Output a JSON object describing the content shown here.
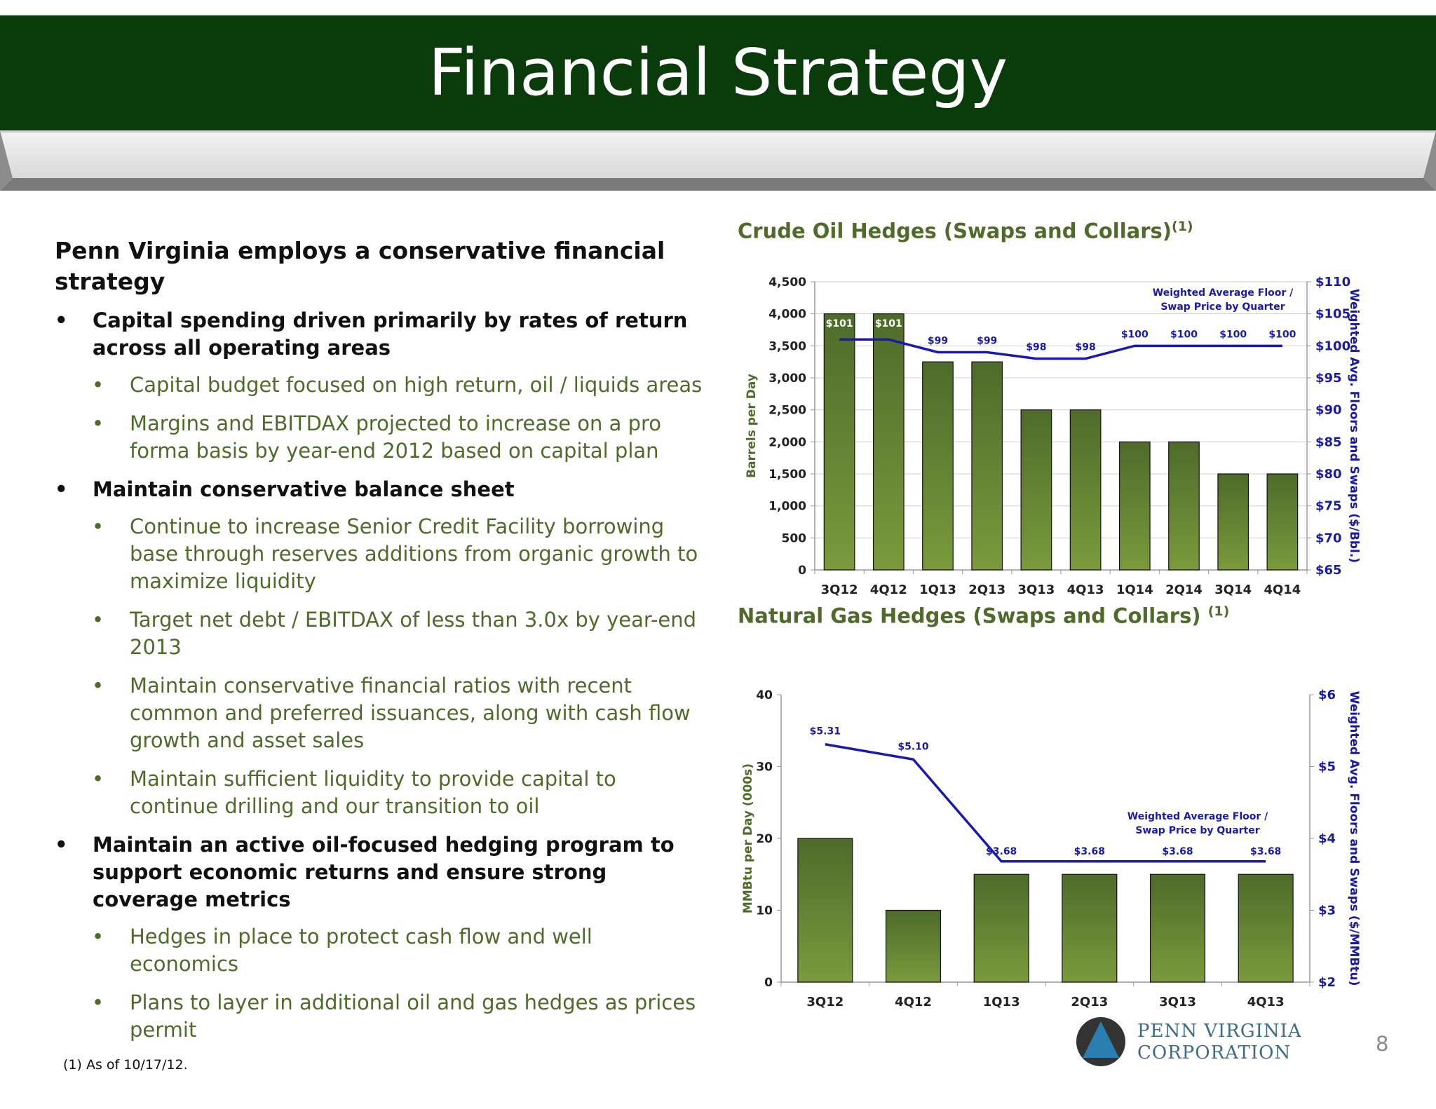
{
  "slide": {
    "title": "Financial Strategy",
    "page_number": "8",
    "footnote": "(1) As of 10/17/12.",
    "logo": {
      "line1": "PENN VIRGINIA",
      "line2": "CORPORATION"
    }
  },
  "left": {
    "intro": "Penn Virginia employs a conservative financial strategy",
    "sections": [
      {
        "text": "Capital spending driven primarily by rates of return across all operating areas",
        "items": [
          "Capital budget focused on high return, oil / liquids areas",
          "Margins and EBITDAX projected to increase on a pro forma basis by year-end 2012 based on capital plan"
        ]
      },
      {
        "text": "Maintain conservative balance sheet",
        "items": [
          "Continue to increase Senior Credit Facility borrowing base through reserves additions from organic growth to maximize liquidity",
          "Target net debt / EBITDAX of less than 3.0x by year-end 2013",
          "Maintain conservative financial ratios with recent common and preferred issuances, along with cash flow growth and asset sales",
          "Maintain sufficient liquidity to provide capital to continue drilling and our transition to oil"
        ]
      },
      {
        "text": "Maintain an active oil-focused hedging program to support economic returns and ensure strong coverage metrics",
        "items": [
          "Hedges in place to protect cash flow and well economics",
          "Plans to layer in additional oil and gas hedges as prices permit"
        ]
      }
    ]
  },
  "colors": {
    "title_bar": "#0a3b0a",
    "bar_top": "#4e6b2a",
    "bar_bottom": "#7a9a3c",
    "line": "#1a1ab0",
    "green_text": "#4e6b2a"
  },
  "chart_data": [
    {
      "type": "bar",
      "title": "Crude Oil Hedges (Swaps and Collars)",
      "title_sup": "(1)",
      "categories": [
        "3Q12",
        "4Q12",
        "1Q13",
        "2Q13",
        "3Q13",
        "4Q13",
        "1Q14",
        "2Q14",
        "3Q14",
        "4Q14"
      ],
      "values": [
        4000,
        4000,
        3250,
        3250,
        2500,
        2500,
        2000,
        2000,
        1500,
        1500
      ],
      "ylabel": "Barrels per Day",
      "ylim": [
        0,
        4500
      ],
      "yticks": [
        0,
        500,
        1000,
        1500,
        2000,
        2500,
        3000,
        3500,
        4000,
        4500
      ],
      "ytick_labels": [
        "0",
        "500",
        "1,000",
        "1,500",
        "2,000",
        "2,500",
        "3,000",
        "3,500",
        "4,000",
        "4,500"
      ],
      "y2label": "Weighted Avg. Floors and Swaps  ($/Bbl.)",
      "y2lim": [
        65,
        110
      ],
      "y2ticks": [
        65,
        70,
        75,
        80,
        85,
        90,
        95,
        100,
        105,
        110
      ],
      "y2tick_labels": [
        "$65",
        "$70",
        "$75",
        "$80",
        "$85",
        "$90",
        "$95",
        "$100",
        "$105",
        "$110"
      ],
      "line": {
        "values": [
          101,
          101,
          99,
          99,
          98,
          98,
          100,
          100,
          100,
          100
        ],
        "labels": [
          "$101",
          "$101",
          "$99",
          "$99",
          "$98",
          "$98",
          "$100",
          "$100",
          "$100",
          "$100"
        ]
      },
      "annotation": [
        "Weighted Average Floor /",
        "Swap Price by Quarter"
      ],
      "grid": true
    },
    {
      "type": "bar",
      "title": "Natural Gas Hedges (Swaps and Collars)",
      "title_sup": "(1)",
      "categories": [
        "3Q12",
        "4Q12",
        "1Q13",
        "2Q13",
        "3Q13",
        "4Q13"
      ],
      "values": [
        20,
        10,
        15,
        15,
        15,
        15
      ],
      "ylabel": "MMBtu per Day (000s)",
      "ylim": [
        0,
        40
      ],
      "yticks": [
        0,
        10,
        20,
        30,
        40
      ],
      "ytick_labels": [
        "0",
        "10",
        "20",
        "30",
        "40"
      ],
      "y2label": "Weighted Avg. Floors and Swaps  ($/MMBtu)",
      "y2lim": [
        2,
        6
      ],
      "y2ticks": [
        2,
        3,
        4,
        5,
        6
      ],
      "y2tick_labels": [
        "$2",
        "$3",
        "$4",
        "$5",
        "$6"
      ],
      "line": {
        "values": [
          5.31,
          5.1,
          3.68,
          3.68,
          3.68,
          3.68
        ],
        "labels": [
          "$5.31",
          "$5.10",
          "$3.68",
          "$3.68",
          "$3.68",
          "$3.68"
        ]
      },
      "annotation": [
        "Weighted Average Floor /",
        "Swap Price by Quarter"
      ],
      "grid": false
    }
  ]
}
